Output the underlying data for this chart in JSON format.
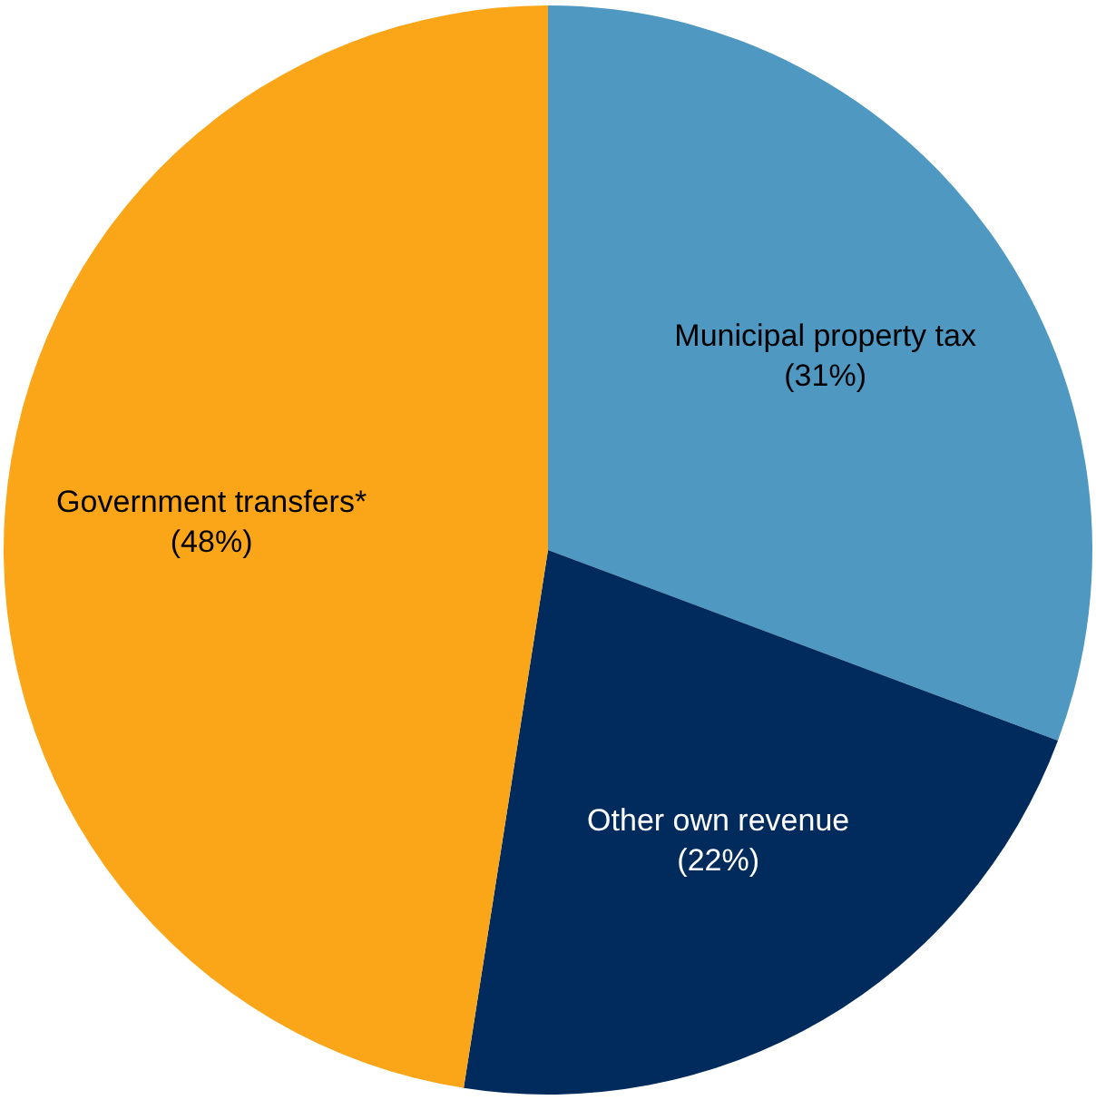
{
  "chart_data": {
    "type": "pie",
    "categories": [
      "Municipal property tax",
      "Other own revenue",
      "Government transfers*"
    ],
    "values": [
      31,
      22,
      48
    ],
    "colors": [
      "#4f98c2",
      "#002b5c",
      "#fba619"
    ],
    "value_labels": [
      "(31%)",
      "(22%)",
      "(48%)"
    ],
    "legend": false
  }
}
